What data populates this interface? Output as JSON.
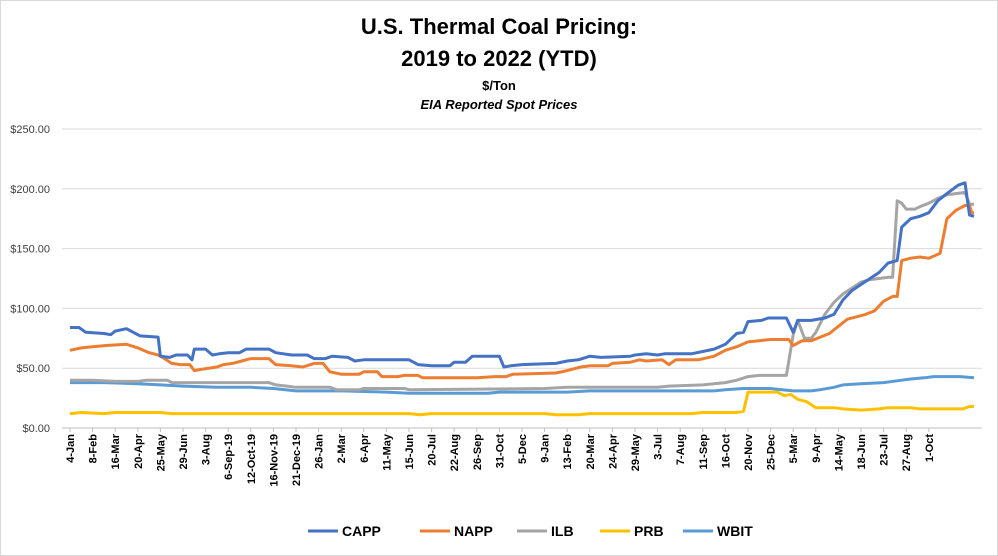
{
  "chart_data": {
    "type": "line",
    "title": "U.S. Thermal Coal Pricing:",
    "title_line2": "2019 to 2022 (YTD)",
    "subtitle": "$/Ton",
    "subtitle2": "EIA Reported Spot Prices",
    "ylim": [
      0,
      250
    ],
    "yticks": [
      "$0.00",
      "$50.00",
      "$100.00",
      "$150.00",
      "$200.00",
      "$250.00"
    ],
    "grid": true,
    "legend_position": "bottom",
    "x_tick_labels": [
      "4-Jan",
      "8-Feb",
      "16-Mar",
      "20-Apr",
      "25-May",
      "29-Jun",
      "3-Aug",
      "6-Sep-19",
      "12-Oct-19",
      "16-Nov-19",
      "21-Dec-19",
      "26-Jan",
      "2-Mar",
      "6-Apr",
      "11-May",
      "15-Jun",
      "20-Jul",
      "22-Aug",
      "26-Sep",
      "31-Oct",
      "5-Dec",
      "9-Jan",
      "13-Feb",
      "20-Mar",
      "24-Apr",
      "29-May",
      "3-Jul",
      "7-Aug",
      "11-Sep",
      "16-Oct",
      "20-Nov",
      "25-Dec",
      "5-Mar",
      "9-Apr",
      "14-May",
      "18-Jun",
      "23-Jul",
      "27-Aug",
      "1-Oct"
    ],
    "series": [
      {
        "name": "CAPP",
        "color": "#4472c4",
        "points": [
          [
            0,
            84
          ],
          [
            0.4,
            84
          ],
          [
            0.7,
            80
          ],
          [
            1.5,
            79
          ],
          [
            1.8,
            78
          ],
          [
            2.0,
            81
          ],
          [
            2.5,
            83
          ],
          [
            2.8,
            80
          ],
          [
            3.1,
            77
          ],
          [
            3.9,
            76
          ],
          [
            4.0,
            60
          ],
          [
            4.4,
            59
          ],
          [
            4.7,
            61
          ],
          [
            5.2,
            61
          ],
          [
            5.4,
            57
          ],
          [
            5.5,
            66
          ],
          [
            6.0,
            66
          ],
          [
            6.3,
            61
          ],
          [
            6.6,
            62
          ],
          [
            7.0,
            63
          ],
          [
            7.5,
            63
          ],
          [
            7.8,
            66
          ],
          [
            8.8,
            66
          ],
          [
            9.1,
            63
          ],
          [
            9.8,
            61
          ],
          [
            10.5,
            61
          ],
          [
            10.8,
            58
          ],
          [
            11.3,
            58
          ],
          [
            11.6,
            60
          ],
          [
            12.3,
            59
          ],
          [
            12.6,
            56
          ],
          [
            13.0,
            57
          ],
          [
            15.0,
            57
          ],
          [
            15.4,
            53
          ],
          [
            16.0,
            52
          ],
          [
            16.8,
            52
          ],
          [
            17.0,
            55
          ],
          [
            17.5,
            55
          ],
          [
            17.8,
            60
          ],
          [
            19.0,
            60
          ],
          [
            19.2,
            51
          ],
          [
            19.5,
            52
          ],
          [
            20.0,
            53
          ],
          [
            21.5,
            54
          ],
          [
            22.0,
            56
          ],
          [
            22.5,
            57
          ],
          [
            23.0,
            60
          ],
          [
            23.5,
            59
          ],
          [
            24.8,
            60
          ],
          [
            25.0,
            61
          ],
          [
            25.5,
            62
          ],
          [
            26.0,
            61
          ],
          [
            26.3,
            62
          ],
          [
            27.5,
            62
          ],
          [
            28.5,
            66
          ],
          [
            29.0,
            70
          ],
          [
            29.5,
            79
          ],
          [
            29.8,
            80
          ],
          [
            30.0,
            89
          ],
          [
            30.6,
            90
          ],
          [
            30.9,
            92
          ],
          [
            31.7,
            92
          ],
          [
            32.0,
            80
          ],
          [
            32.2,
            90
          ],
          [
            32.8,
            90
          ],
          [
            33.4,
            92
          ],
          [
            33.8,
            95
          ],
          [
            34.2,
            107
          ],
          [
            34.6,
            115
          ],
          [
            35.0,
            120
          ],
          [
            35.4,
            125
          ],
          [
            35.8,
            130
          ],
          [
            36.2,
            138
          ],
          [
            36.6,
            140
          ],
          [
            36.8,
            168
          ],
          [
            37.2,
            175
          ],
          [
            37.6,
            177
          ],
          [
            38.0,
            180
          ],
          [
            38.4,
            190
          ],
          [
            38.8,
            196
          ],
          [
            39.3,
            203
          ],
          [
            39.6,
            205
          ],
          [
            39.8,
            178
          ],
          [
            40.0,
            177
          ]
        ]
      },
      {
        "name": "NAPP",
        "color": "#ed7d31",
        "points": [
          [
            0,
            65
          ],
          [
            0.5,
            67
          ],
          [
            1.0,
            68
          ],
          [
            1.6,
            69
          ],
          [
            2.5,
            70
          ],
          [
            3.0,
            67
          ],
          [
            3.5,
            63
          ],
          [
            3.9,
            61
          ],
          [
            4.1,
            59
          ],
          [
            4.5,
            54
          ],
          [
            4.9,
            53
          ],
          [
            5.3,
            53
          ],
          [
            5.5,
            48
          ],
          [
            5.8,
            49
          ],
          [
            6.5,
            51
          ],
          [
            6.8,
            53
          ],
          [
            7.2,
            54
          ],
          [
            7.6,
            56
          ],
          [
            8.0,
            58
          ],
          [
            8.8,
            58
          ],
          [
            9.1,
            53
          ],
          [
            9.8,
            52
          ],
          [
            10.3,
            51
          ],
          [
            10.8,
            54
          ],
          [
            11.2,
            54
          ],
          [
            11.5,
            47
          ],
          [
            12.0,
            45
          ],
          [
            12.8,
            45
          ],
          [
            13.0,
            47
          ],
          [
            13.6,
            47
          ],
          [
            13.8,
            43
          ],
          [
            14.5,
            43
          ],
          [
            14.8,
            44
          ],
          [
            15.4,
            44
          ],
          [
            15.6,
            42
          ],
          [
            18.0,
            42
          ],
          [
            18.8,
            43
          ],
          [
            19.3,
            43
          ],
          [
            19.6,
            45
          ],
          [
            21.5,
            46
          ],
          [
            22.0,
            48
          ],
          [
            22.6,
            51
          ],
          [
            23.0,
            52
          ],
          [
            23.8,
            52
          ],
          [
            24.0,
            54
          ],
          [
            24.8,
            55
          ],
          [
            25.2,
            57
          ],
          [
            25.5,
            56
          ],
          [
            26.2,
            57
          ],
          [
            26.5,
            53
          ],
          [
            26.8,
            57
          ],
          [
            27.8,
            57
          ],
          [
            28.5,
            60
          ],
          [
            29.0,
            65
          ],
          [
            29.5,
            68
          ],
          [
            30.0,
            72
          ],
          [
            30.5,
            73
          ],
          [
            31.0,
            74
          ],
          [
            31.8,
            74
          ],
          [
            32.0,
            69
          ],
          [
            32.4,
            73
          ],
          [
            32.8,
            73
          ],
          [
            33.2,
            76
          ],
          [
            33.6,
            79
          ],
          [
            34.0,
            85
          ],
          [
            34.4,
            91
          ],
          [
            34.8,
            93
          ],
          [
            35.2,
            95
          ],
          [
            35.6,
            98
          ],
          [
            36.0,
            106
          ],
          [
            36.4,
            110
          ],
          [
            36.6,
            110
          ],
          [
            36.8,
            140
          ],
          [
            37.2,
            142
          ],
          [
            37.6,
            143
          ],
          [
            38.0,
            142
          ],
          [
            38.5,
            146
          ],
          [
            38.8,
            175
          ],
          [
            39.2,
            182
          ],
          [
            39.6,
            186
          ],
          [
            39.8,
            186
          ],
          [
            39.9,
            180
          ],
          [
            40.0,
            180
          ]
        ]
      },
      {
        "name": "ILB",
        "color": "#a5a5a5",
        "points": [
          [
            0,
            40
          ],
          [
            1.0,
            40
          ],
          [
            2.0,
            39
          ],
          [
            3.0,
            39
          ],
          [
            3.4,
            40
          ],
          [
            4.3,
            40
          ],
          [
            4.5,
            38
          ],
          [
            8.8,
            38
          ],
          [
            9.1,
            36
          ],
          [
            9.6,
            35
          ],
          [
            10.0,
            34
          ],
          [
            11.5,
            34
          ],
          [
            11.8,
            32
          ],
          [
            12.8,
            32
          ],
          [
            13.0,
            33
          ],
          [
            14.8,
            33
          ],
          [
            15.0,
            32
          ],
          [
            21.0,
            33
          ],
          [
            22.0,
            34
          ],
          [
            26.0,
            34
          ],
          [
            26.5,
            35
          ],
          [
            28.0,
            36
          ],
          [
            29.0,
            38
          ],
          [
            29.5,
            40
          ],
          [
            30.0,
            43
          ],
          [
            30.5,
            44
          ],
          [
            31.5,
            44
          ],
          [
            31.7,
            44
          ],
          [
            32.0,
            78
          ],
          [
            32.2,
            90
          ],
          [
            32.5,
            75
          ],
          [
            32.8,
            75
          ],
          [
            33.0,
            80
          ],
          [
            33.4,
            95
          ],
          [
            33.8,
            105
          ],
          [
            34.2,
            112
          ],
          [
            34.6,
            117
          ],
          [
            35.0,
            122
          ],
          [
            35.4,
            124
          ],
          [
            35.8,
            125
          ],
          [
            36.2,
            126
          ],
          [
            36.4,
            126
          ],
          [
            36.6,
            190
          ],
          [
            36.8,
            188
          ],
          [
            37.0,
            183
          ],
          [
            37.4,
            183
          ],
          [
            37.6,
            185
          ],
          [
            38.0,
            188
          ],
          [
            38.4,
            192
          ],
          [
            38.8,
            195
          ],
          [
            39.2,
            196
          ],
          [
            39.6,
            197
          ],
          [
            39.8,
            187
          ],
          [
            40.0,
            187
          ]
        ]
      },
      {
        "name": "PRB",
        "color": "#ffc000",
        "points": [
          [
            0,
            12
          ],
          [
            0.5,
            13
          ],
          [
            1.5,
            12
          ],
          [
            2.0,
            13
          ],
          [
            4.0,
            13
          ],
          [
            4.5,
            12
          ],
          [
            15.0,
            12
          ],
          [
            15.5,
            11
          ],
          [
            16.0,
            12
          ],
          [
            21.0,
            12
          ],
          [
            21.5,
            11
          ],
          [
            22.5,
            11
          ],
          [
            23.0,
            12
          ],
          [
            27.5,
            12
          ],
          [
            28.0,
            13
          ],
          [
            29.5,
            13
          ],
          [
            29.8,
            14
          ],
          [
            30.0,
            30
          ],
          [
            31.3,
            30
          ],
          [
            31.6,
            27
          ],
          [
            31.9,
            28
          ],
          [
            32.2,
            24
          ],
          [
            32.6,
            22
          ],
          [
            33.0,
            17
          ],
          [
            33.8,
            17
          ],
          [
            34.2,
            16
          ],
          [
            35.0,
            15
          ],
          [
            35.8,
            16
          ],
          [
            36.2,
            17
          ],
          [
            37.2,
            17
          ],
          [
            37.6,
            16
          ],
          [
            39.5,
            16
          ],
          [
            39.8,
            18
          ],
          [
            40.0,
            18
          ]
        ]
      },
      {
        "name": "WBIT",
        "color": "#5b9bd5",
        "points": [
          [
            0,
            38
          ],
          [
            1.5,
            38
          ],
          [
            3.0,
            37
          ],
          [
            4.0,
            36
          ],
          [
            5.0,
            35
          ],
          [
            6.5,
            34
          ],
          [
            8.0,
            34
          ],
          [
            9.0,
            33
          ],
          [
            10.0,
            31
          ],
          [
            11.5,
            31
          ],
          [
            12.0,
            31
          ],
          [
            14.0,
            30
          ],
          [
            15.0,
            29
          ],
          [
            16.0,
            29
          ],
          [
            18.5,
            29
          ],
          [
            19.0,
            30
          ],
          [
            22.0,
            30
          ],
          [
            23.0,
            31
          ],
          [
            27.5,
            31
          ],
          [
            28.5,
            31
          ],
          [
            29.0,
            32
          ],
          [
            29.8,
            33
          ],
          [
            31.0,
            33
          ],
          [
            31.5,
            32
          ],
          [
            32.0,
            31
          ],
          [
            32.8,
            31
          ],
          [
            33.2,
            32
          ],
          [
            33.8,
            34
          ],
          [
            34.2,
            36
          ],
          [
            35.0,
            37
          ],
          [
            36.0,
            38
          ],
          [
            36.8,
            40
          ],
          [
            37.2,
            41
          ],
          [
            37.8,
            42
          ],
          [
            38.2,
            43
          ],
          [
            39.4,
            43
          ],
          [
            40.0,
            42
          ]
        ]
      }
    ]
  }
}
